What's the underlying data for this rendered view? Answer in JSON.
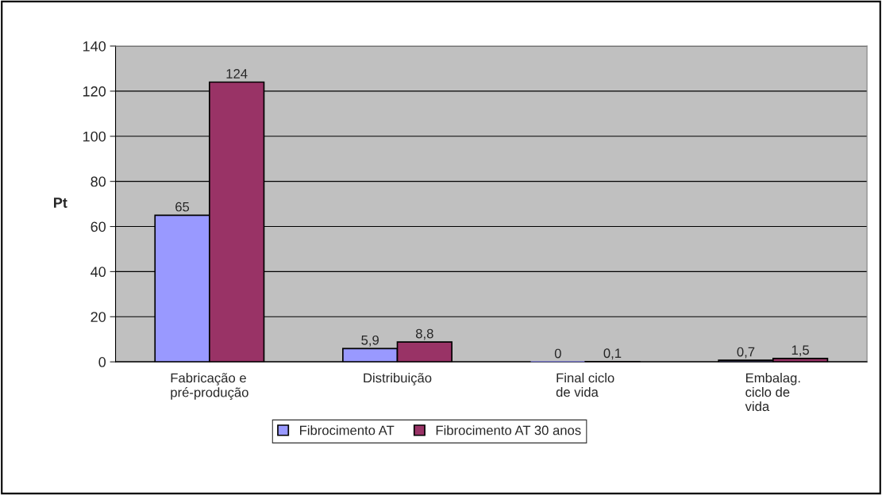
{
  "chart_data": {
    "type": "bar",
    "ylabel": "Pt",
    "categories": [
      "Fabricação e\npré-produção",
      "Distribuição",
      "Final ciclo\nde vida",
      "Embalag.\nciclo de\nvida"
    ],
    "series": [
      {
        "name": "Fibrocimento AT",
        "color": "#9999ff",
        "values": [
          65,
          5.9,
          0,
          0.7
        ],
        "value_labels": [
          "65",
          "5,9",
          "0",
          "0,7"
        ]
      },
      {
        "name": "Fibrocimento AT 30 anos",
        "color": "#993366",
        "values": [
          124,
          8.8,
          0.1,
          1.5
        ],
        "value_labels": [
          "124",
          "8,8",
          "0,1",
          "1,5"
        ]
      }
    ],
    "ylim": [
      0,
      140
    ],
    "yticks": [
      0,
      20,
      40,
      60,
      80,
      100,
      120,
      140
    ],
    "grid": "y",
    "legend": "bottom"
  }
}
